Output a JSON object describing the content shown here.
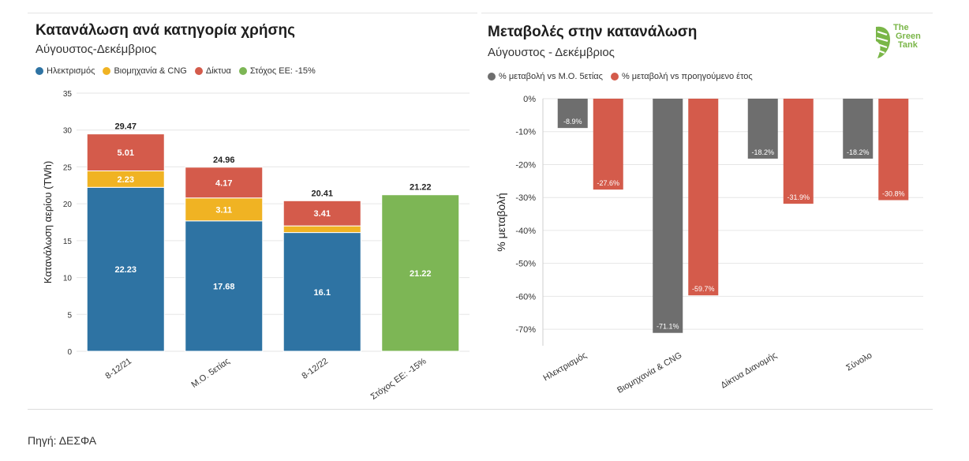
{
  "source": "Πηγή: ΔΕΣΦΑ",
  "logo": {
    "lines": [
      "The",
      "Green",
      "Tank"
    ],
    "color": "#7ab648"
  },
  "colors": {
    "electricity": "#2e73a3",
    "industry": "#f0b323",
    "networks": "#d45b4b",
    "target": "#7db655",
    "grey": "#6e6e6e",
    "red": "#d45b4b"
  },
  "left": {
    "title": "Κατανάλωση ανά κατηγορία χρήσης",
    "subtitle": "Αύγουστος-Δεκέμβριος",
    "legend": [
      {
        "label": "Ηλεκτρισμός",
        "color": "#2e73a3"
      },
      {
        "label": "Βιομηχανία & CNG",
        "color": "#f0b323"
      },
      {
        "label": "Δίκτυα",
        "color": "#d45b4b"
      },
      {
        "label": "Στόχος ΕΕ: -15%",
        "color": "#7db655"
      }
    ]
  },
  "right": {
    "title": "Μεταβολές στην κατανάλωση",
    "subtitle": "Αύγουστος - Δεκέμβριος",
    "legend": [
      {
        "label": "% μεταβολή vs Μ.Ο. 5ετίας",
        "color": "#6e6e6e"
      },
      {
        "label": "% μεταβολή vs προηγούμενο έτος",
        "color": "#d45b4b"
      }
    ]
  },
  "chart_data": [
    {
      "type": "bar",
      "stacked": true,
      "title": "Κατανάλωση ανά κατηγορία χρήσης",
      "subtitle": "Αύγουστος-Δεκέμβριος",
      "categories": [
        "8-12/21",
        "Μ.Ο. 5ετίας",
        "8-12/22",
        "Στόχος ΕΕ: -15%"
      ],
      "series": [
        {
          "name": "Ηλεκτρισμός",
          "color": "#2e73a3",
          "values": [
            22.23,
            17.68,
            16.1,
            null
          ],
          "labels": [
            "22.23",
            "17.68",
            "16.1",
            null
          ]
        },
        {
          "name": "Βιομηχανία & CNG",
          "color": "#f0b323",
          "values": [
            2.23,
            3.11,
            0.9,
            null
          ],
          "labels": [
            "2.23",
            "3.11",
            null,
            null
          ]
        },
        {
          "name": "Δίκτυα",
          "color": "#d45b4b",
          "values": [
            5.01,
            4.17,
            3.41,
            null
          ],
          "labels": [
            "5.01",
            "4.17",
            "3.41",
            null
          ]
        },
        {
          "name": "Στόχος ΕΕ: -15%",
          "color": "#7db655",
          "values": [
            null,
            null,
            null,
            21.22
          ],
          "labels": [
            null,
            null,
            null,
            "21.22"
          ]
        }
      ],
      "totals": [
        "29.47",
        "24.96",
        "20.41",
        "21.22"
      ],
      "ylabel": "Κατανάλωση αερίου (TWh)",
      "xlabel": "",
      "ylim": [
        0,
        35
      ],
      "yticks": [
        0,
        5,
        10,
        15,
        20,
        25,
        30,
        35
      ],
      "ytick_labels": [
        "0",
        "5",
        "10",
        "15",
        "20",
        "25",
        "30",
        "35"
      ]
    },
    {
      "type": "bar",
      "title": "Μεταβολές στην κατανάλωση",
      "subtitle": "Αύγουστος - Δεκέμβριος",
      "categories": [
        "Ηλεκτρισμός",
        "Βιομηχανία & CNG",
        "Δίκτυα Διανομής",
        "Σύνολο"
      ],
      "series": [
        {
          "name": "% μεταβολή vs Μ.Ο. 5ετίας",
          "color": "#6e6e6e",
          "values": [
            -8.9,
            -71.1,
            -18.2,
            -18.2
          ],
          "labels": [
            "-8.9%",
            "-71.1%",
            "-18.2%",
            "-18.2%"
          ]
        },
        {
          "name": "% μεταβολή vs προηγούμενο έτος",
          "color": "#d45b4b",
          "values": [
            -27.6,
            -59.7,
            -31.9,
            -30.8
          ],
          "labels": [
            "-27.6%",
            "-59.7%",
            "-31.9%",
            "-30.8%"
          ]
        }
      ],
      "ylabel": "% μεταβολή",
      "xlabel": "",
      "ylim": [
        -75,
        0
      ],
      "yticks": [
        0,
        -10,
        -20,
        -30,
        -40,
        -50,
        -60,
        -70
      ],
      "ytick_labels": [
        "0%",
        "-10%",
        "-20%",
        "-30%",
        "-40%",
        "-50%",
        "-60%",
        "-70%"
      ]
    }
  ]
}
